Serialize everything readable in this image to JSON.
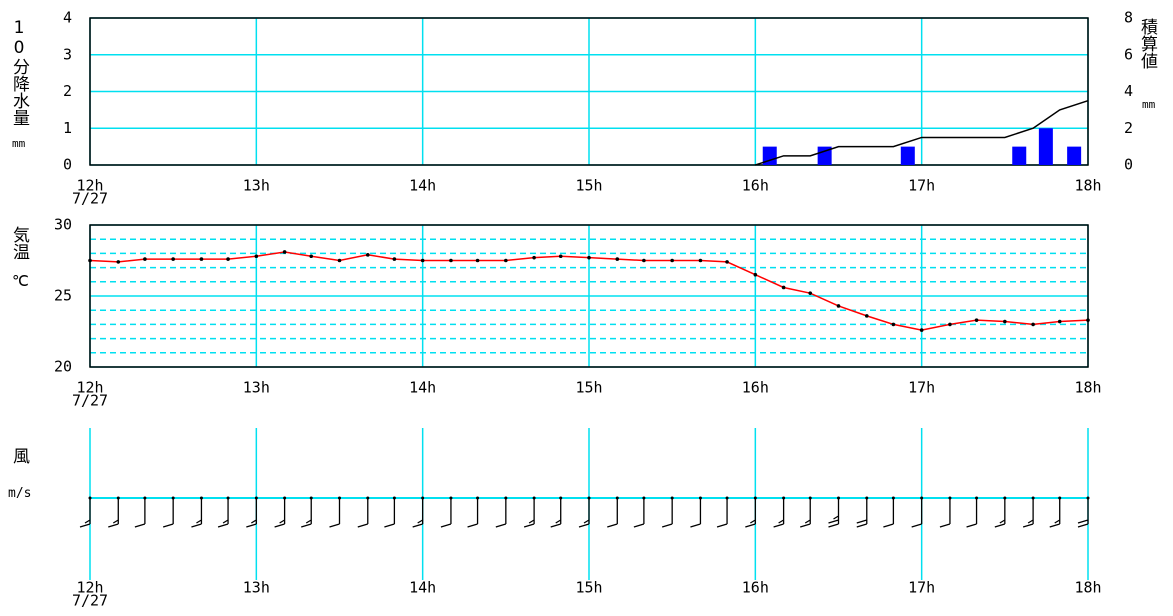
{
  "chart_data": [
    {
      "type": "bar_line",
      "y_label": "10分降水量",
      "y_unit": "mm",
      "y2_label": "積算値",
      "y2_unit": "mm",
      "date_label": "7/27",
      "xlim": [
        12,
        18
      ],
      "xticks": [
        {
          "value": 12,
          "label": "12h"
        },
        {
          "value": 13,
          "label": "13h"
        },
        {
          "value": 14,
          "label": "14h"
        },
        {
          "value": 15,
          "label": "15h"
        },
        {
          "value": 16,
          "label": "16h"
        },
        {
          "value": 17,
          "label": "17h"
        },
        {
          "value": 18,
          "label": "18h"
        }
      ],
      "ylim": [
        0,
        4
      ],
      "yticks": [
        0,
        1,
        2,
        3,
        4
      ],
      "y2lim": [
        0,
        8
      ],
      "y2ticks": [
        0,
        2,
        4,
        6,
        8
      ],
      "series": [
        {
          "type": "bar",
          "color": "#0000ff",
          "x": [
            16.17,
            16.5,
            17,
            17.67,
            17.83,
            18
          ],
          "values": [
            0.5,
            0.5,
            0.5,
            0.5,
            1.0,
            0.5
          ]
        },
        {
          "type": "line",
          "axis": "y2",
          "color": "#000000",
          "x": [
            16,
            16.17,
            16.33,
            16.5,
            16.67,
            16.83,
            17,
            17.17,
            17.33,
            17.5,
            17.67,
            17.83,
            18
          ],
          "values": [
            0,
            0.5,
            0.5,
            1.0,
            1.0,
            1.0,
            1.5,
            1.5,
            1.5,
            1.5,
            2.0,
            3.0,
            3.5
          ]
        }
      ]
    },
    {
      "type": "line",
      "y_label": "気温",
      "y_unit": "℃",
      "date_label": "7/27",
      "xlim": [
        12,
        18
      ],
      "xticks": [
        {
          "value": 12,
          "label": "12h"
        },
        {
          "value": 13,
          "label": "13h"
        },
        {
          "value": 14,
          "label": "14h"
        },
        {
          "value": 15,
          "label": "15h"
        },
        {
          "value": 16,
          "label": "16h"
        },
        {
          "value": 17,
          "label": "17h"
        },
        {
          "value": 18,
          "label": "18h"
        }
      ],
      "ylim": [
        20,
        30
      ],
      "yticks": [
        20,
        25,
        30
      ],
      "minor_yticks": [
        21,
        22,
        23,
        24,
        26,
        27,
        28,
        29
      ],
      "series": [
        {
          "color": "#ff0000",
          "x": [
            12,
            12.17,
            12.33,
            12.5,
            12.67,
            12.83,
            13,
            13.17,
            13.33,
            13.5,
            13.67,
            13.83,
            14,
            14.17,
            14.33,
            14.5,
            14.67,
            14.83,
            15,
            15.17,
            15.33,
            15.5,
            15.67,
            15.83,
            16,
            16.17,
            16.33,
            16.5,
            16.67,
            16.83,
            17,
            17.17,
            17.33,
            17.5,
            17.67,
            17.83,
            18
          ],
          "values": [
            27.5,
            27.4,
            27.6,
            27.6,
            27.6,
            27.6,
            27.8,
            28.1,
            27.8,
            27.5,
            27.9,
            27.6,
            27.5,
            27.5,
            27.5,
            27.5,
            27.7,
            27.8,
            27.7,
            27.6,
            27.5,
            27.5,
            27.5,
            27.4,
            26.5,
            25.6,
            25.2,
            24.3,
            23.6,
            23.0,
            22.6,
            23.0,
            23.3,
            23.2,
            23.0,
            23.2,
            23.3
          ]
        }
      ]
    },
    {
      "type": "wind_barb",
      "y_label": "風",
      "y_unit": "m/s",
      "date_label": "7/27",
      "xlim": [
        12,
        18
      ],
      "xticks": [
        {
          "value": 12,
          "label": "12h"
        },
        {
          "value": 13,
          "label": "13h"
        },
        {
          "value": 14,
          "label": "14h"
        },
        {
          "value": 15,
          "label": "15h"
        },
        {
          "value": 16,
          "label": "16h"
        },
        {
          "value": 17,
          "label": "17h"
        },
        {
          "value": 18,
          "label": "18h"
        }
      ],
      "series": [
        {
          "color": "#000000",
          "x": [
            12,
            12.17,
            12.33,
            12.5,
            12.67,
            12.83,
            13,
            13.17,
            13.33,
            13.5,
            13.67,
            13.83,
            14,
            14.17,
            14.33,
            14.5,
            14.67,
            14.83,
            15,
            15.17,
            15.33,
            15.5,
            15.67,
            15.83,
            16,
            16.17,
            16.33,
            16.5,
            16.67,
            16.83,
            17,
            17.17,
            17.33,
            17.5,
            17.67,
            17.83,
            18
          ],
          "values": [
            3,
            3,
            2,
            2,
            3,
            3,
            3,
            3,
            3,
            2,
            2,
            2,
            3,
            2,
            2,
            2,
            3,
            3,
            3,
            2,
            2,
            2,
            2,
            2,
            3,
            3,
            3,
            5,
            4,
            2,
            2,
            2,
            2,
            3,
            3,
            3,
            4
          ]
        }
      ]
    }
  ]
}
